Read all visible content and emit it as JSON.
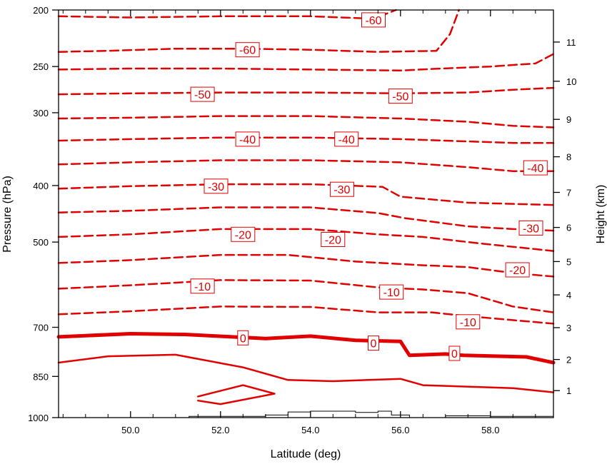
{
  "chart_data": {
    "type": "contour",
    "xlabel": "Latitude (deg)",
    "ylabel_left": "Pressure (hPa)",
    "ylabel_right": "Height (km)",
    "xlim": [
      48.4,
      59.4
    ],
    "ylim_pressure": [
      1000,
      200
    ],
    "y_scale": "log",
    "x_ticks": [
      "50.0",
      "52.0",
      "54.0",
      "56.0",
      "58.0"
    ],
    "x_tick_values": [
      50,
      52,
      54,
      56,
      58
    ],
    "pressure_ticks": [
      1000,
      850,
      700,
      500,
      400,
      300,
      250,
      200
    ],
    "height_ticks": [
      1,
      2,
      3,
      4,
      5,
      6,
      7,
      8,
      9,
      10,
      11
    ],
    "height_tick_pressures": [
      899,
      795,
      701,
      616,
      540,
      472,
      411,
      357,
      308,
      265,
      227
    ],
    "contour_color": "#e00000",
    "terrain_color": "#000000",
    "grid": false,
    "contours": [
      {
        "level": -60,
        "points": [
          [
            48.4,
            205
          ],
          [
            50,
            206
          ],
          [
            52,
            205
          ],
          [
            54,
            205
          ],
          [
            55.4,
            207
          ],
          [
            55.9,
            200
          ]
        ]
      },
      {
        "level": -60,
        "points": [
          [
            48.4,
            236
          ],
          [
            49.5,
            235
          ],
          [
            51,
            233
          ],
          [
            52.5,
            233
          ],
          [
            54,
            234
          ],
          [
            55.5,
            236
          ],
          [
            56.8,
            235
          ],
          [
            57.1,
            220
          ],
          [
            57.3,
            200
          ]
        ]
      },
      {
        "level": -60,
        "points": [
          [
            48.4,
            253
          ],
          [
            50,
            252
          ],
          [
            52,
            252
          ],
          [
            54,
            253
          ],
          [
            56,
            254
          ],
          [
            56.9,
            252
          ],
          [
            58,
            250
          ],
          [
            59,
            247
          ],
          [
            59.4,
            238
          ]
        ]
      },
      {
        "level": -50,
        "points": [
          [
            48.4,
            279
          ],
          [
            50,
            278
          ],
          [
            52,
            277
          ],
          [
            54,
            277
          ],
          [
            56,
            278
          ],
          [
            57.5,
            277
          ],
          [
            58.5,
            274
          ],
          [
            59.4,
            272
          ]
        ]
      },
      {
        "level": -50,
        "points": [
          [
            48.4,
            307
          ],
          [
            50,
            306
          ],
          [
            52,
            304
          ],
          [
            54,
            304
          ],
          [
            56,
            307
          ],
          [
            57.5,
            311
          ],
          [
            58.5,
            316
          ],
          [
            59.4,
            318
          ]
        ]
      },
      {
        "level": -40,
        "points": [
          [
            48.4,
            335
          ],
          [
            50,
            333
          ],
          [
            52,
            331
          ],
          [
            54,
            331
          ],
          [
            56,
            333
          ],
          [
            57.5,
            336
          ],
          [
            58.5,
            338
          ],
          [
            59.4,
            338
          ]
        ]
      },
      {
        "level": -40,
        "points": [
          [
            48.4,
            368
          ],
          [
            50,
            365
          ],
          [
            52,
            362
          ],
          [
            54,
            362
          ],
          [
            56,
            365
          ],
          [
            57.5,
            372
          ],
          [
            58.5,
            378
          ],
          [
            59.4,
            378
          ]
        ]
      },
      {
        "level": -30,
        "points": [
          [
            48.4,
            405
          ],
          [
            50,
            401
          ],
          [
            52,
            398
          ],
          [
            54,
            398
          ],
          [
            55.6,
            402
          ],
          [
            56,
            418
          ],
          [
            57.5,
            428
          ],
          [
            59.4,
            432
          ]
        ]
      },
      {
        "level": -30,
        "points": [
          [
            48.4,
            445
          ],
          [
            50,
            442
          ],
          [
            52,
            436
          ],
          [
            54,
            436
          ],
          [
            55.5,
            446
          ],
          [
            56.1,
            455
          ],
          [
            57.5,
            470
          ],
          [
            58.5,
            475
          ],
          [
            59.4,
            478
          ]
        ]
      },
      {
        "level": -20,
        "points": [
          [
            48.4,
            490
          ],
          [
            50,
            485
          ],
          [
            52,
            475
          ],
          [
            54,
            475
          ],
          [
            55.5,
            485
          ],
          [
            56.5,
            490
          ],
          [
            57.8,
            503
          ],
          [
            59.4,
            518
          ]
        ]
      },
      {
        "level": -20,
        "points": [
          [
            48.4,
            543
          ],
          [
            50,
            537
          ],
          [
            52,
            526
          ],
          [
            53.5,
            526
          ],
          [
            55,
            540
          ],
          [
            56.5,
            548
          ],
          [
            57.5,
            552
          ],
          [
            58.5,
            565
          ],
          [
            59.4,
            573
          ]
        ]
      },
      {
        "level": -10,
        "points": [
          [
            48.4,
            601
          ],
          [
            50,
            593
          ],
          [
            52,
            581
          ],
          [
            54,
            582
          ],
          [
            55.5,
            598
          ],
          [
            56.5,
            603
          ],
          [
            57.5,
            612
          ],
          [
            58.5,
            645
          ],
          [
            59.4,
            660
          ]
        ]
      },
      {
        "level": -10,
        "points": [
          [
            48.4,
            665
          ],
          [
            50,
            657
          ],
          [
            52,
            645
          ],
          [
            54,
            646
          ],
          [
            55.5,
            660
          ],
          [
            56.7,
            660
          ],
          [
            57.5,
            670
          ],
          [
            59.4,
            690
          ]
        ]
      },
      {
        "level": 0,
        "points": [
          [
            48.4,
            727
          ],
          [
            50,
            718
          ],
          [
            51.2,
            720
          ],
          [
            53,
            732
          ],
          [
            54,
            725
          ],
          [
            55,
            737
          ],
          [
            56,
            740
          ],
          [
            56.2,
            782
          ],
          [
            57,
            778
          ],
          [
            57.4,
            782
          ],
          [
            58.8,
            787
          ],
          [
            59.4,
            805
          ]
        ]
      },
      {
        "level": 10,
        "points": [
          [
            48.4,
            805
          ],
          [
            49.5,
            785
          ],
          [
            51,
            780
          ],
          [
            52.5,
            820
          ],
          [
            53.5,
            862
          ],
          [
            54.5,
            866
          ],
          [
            56,
            858
          ],
          [
            56.5,
            880
          ],
          [
            58.5,
            890
          ],
          [
            59.4,
            905
          ]
        ]
      },
      {
        "level": 10,
        "points": [
          [
            51.5,
            920
          ],
          [
            52.5,
            880
          ],
          [
            53.2,
            910
          ],
          [
            52,
            948
          ],
          [
            51.5,
            935
          ]
        ]
      }
    ],
    "contour_labels": [
      {
        "text": "-60",
        "x": 55.4,
        "p": 208
      },
      {
        "text": "-60",
        "x": 52.6,
        "p": 234
      },
      {
        "text": "-50",
        "x": 51.6,
        "p": 279
      },
      {
        "text": "-50",
        "x": 56.0,
        "p": 281
      },
      {
        "text": "-40",
        "x": 52.6,
        "p": 333
      },
      {
        "text": "-40",
        "x": 54.8,
        "p": 333
      },
      {
        "text": "-40",
        "x": 59.0,
        "p": 373
      },
      {
        "text": "-30",
        "x": 51.9,
        "p": 401
      },
      {
        "text": "-30",
        "x": 54.7,
        "p": 406
      },
      {
        "text": "-30",
        "x": 58.9,
        "p": 473
      },
      {
        "text": "-20",
        "x": 52.5,
        "p": 485
      },
      {
        "text": "-20",
        "x": 54.5,
        "p": 495
      },
      {
        "text": "-20",
        "x": 58.6,
        "p": 558
      },
      {
        "text": "-10",
        "x": 51.6,
        "p": 595
      },
      {
        "text": "-10",
        "x": 55.8,
        "p": 609
      },
      {
        "text": "-10",
        "x": 57.5,
        "p": 685
      },
      {
        "text": "0",
        "x": 52.5,
        "p": 730
      },
      {
        "text": "0",
        "x": 55.4,
        "p": 745
      },
      {
        "text": "0",
        "x": 57.2,
        "p": 776
      }
    ],
    "terrain": [
      [
        51.2,
        1000
      ],
      [
        51.3,
        995
      ],
      [
        52,
        995
      ],
      [
        53,
        990
      ],
      [
        53.5,
        978
      ],
      [
        54,
        975
      ],
      [
        54.5,
        975
      ],
      [
        55,
        980
      ],
      [
        55.5,
        975
      ],
      [
        55.8,
        990
      ],
      [
        56.2,
        1000
      ],
      [
        56.8,
        1000
      ],
      [
        57,
        993
      ],
      [
        58,
        995
      ],
      [
        59,
        995
      ],
      [
        59.4,
        1000
      ]
    ]
  }
}
